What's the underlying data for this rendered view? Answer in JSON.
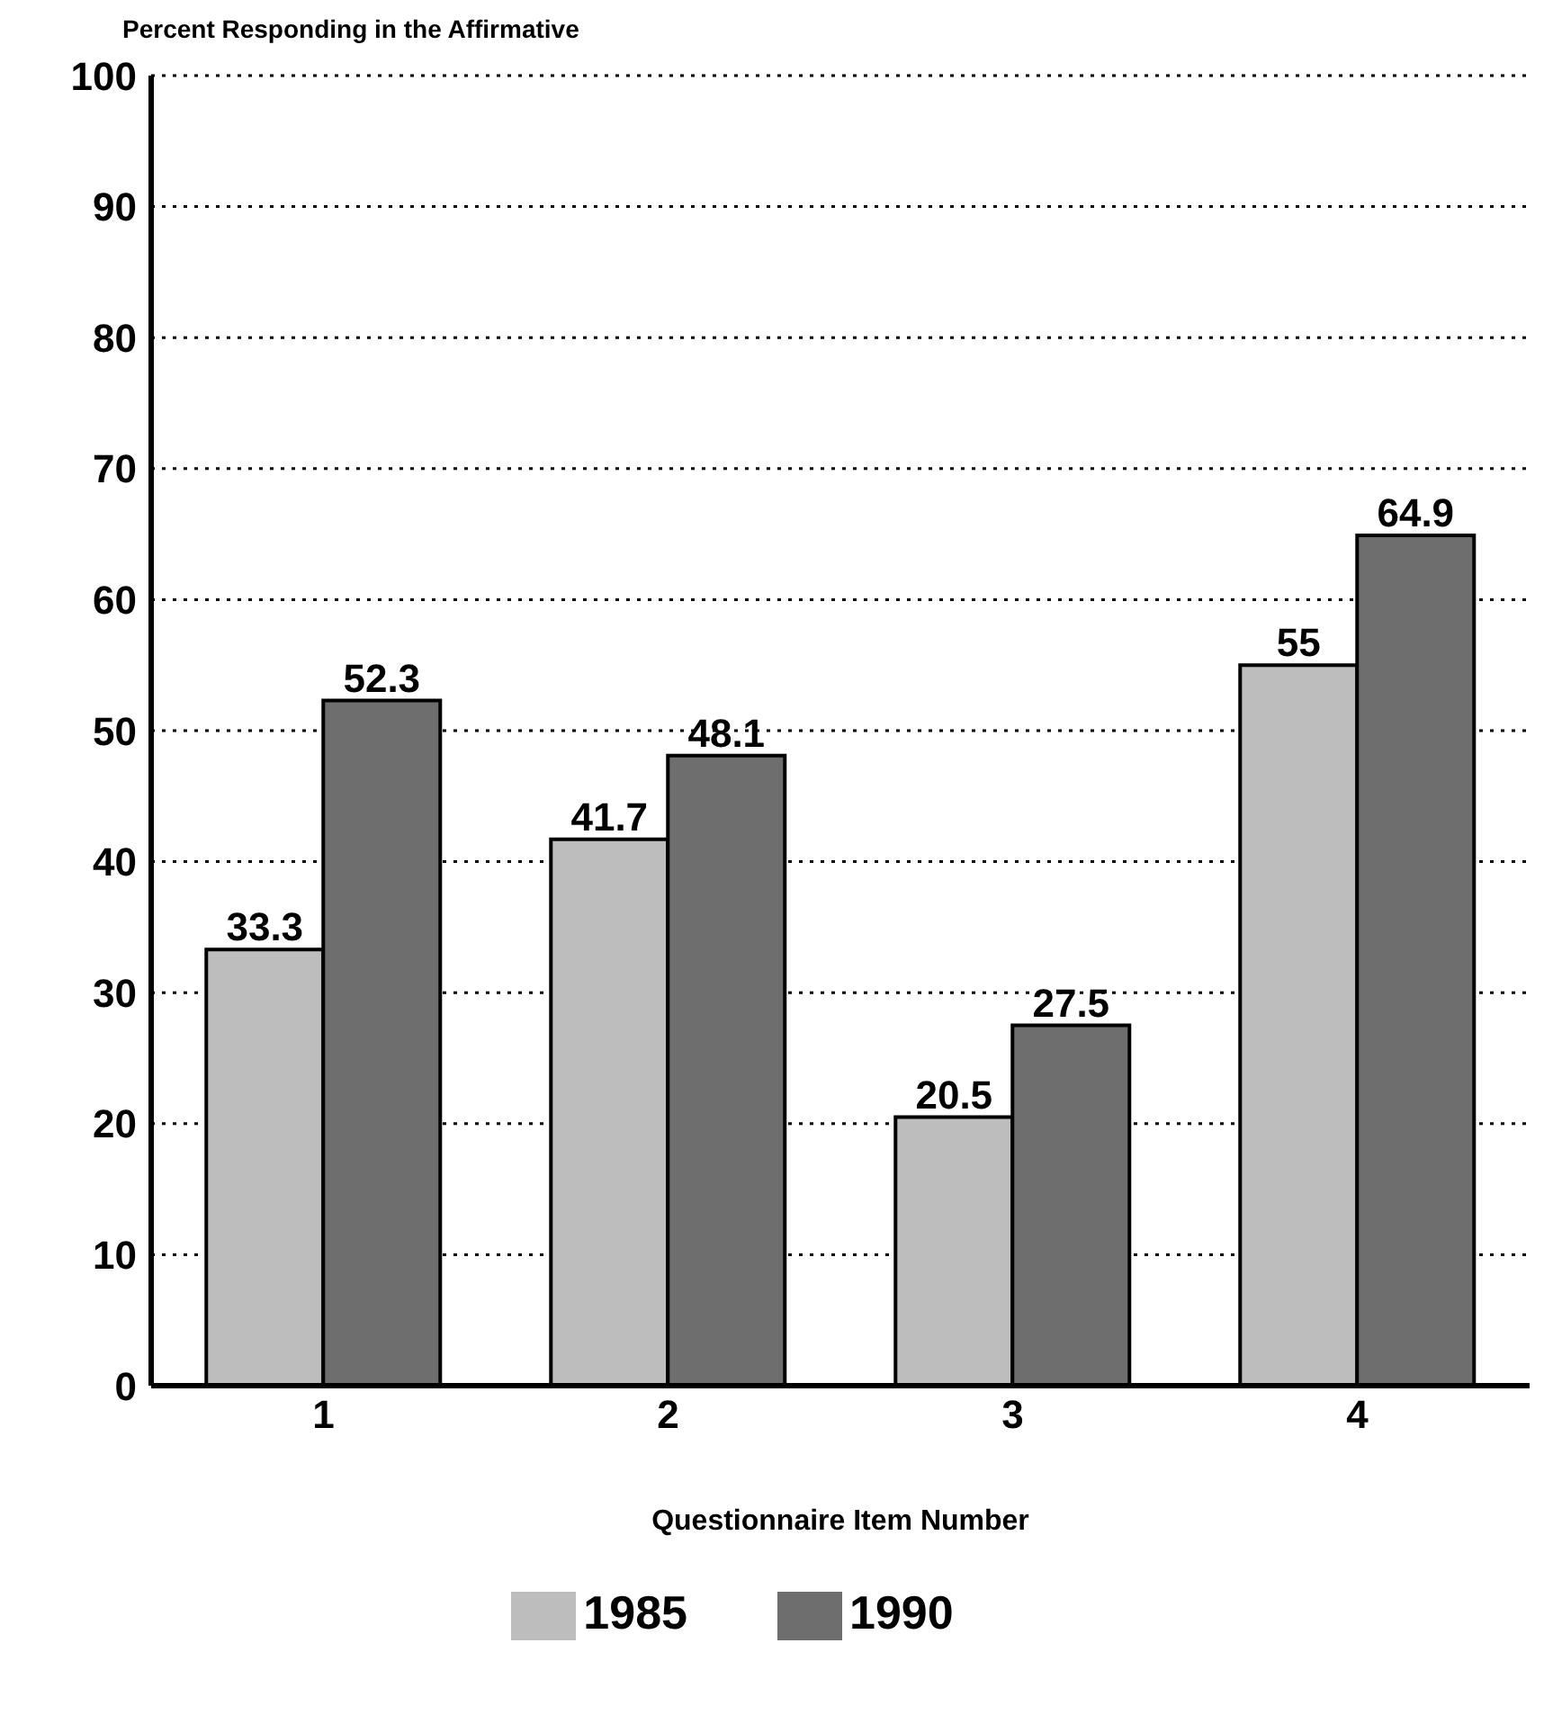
{
  "chart_data": {
    "type": "bar",
    "ylabel": "Percent Responding in the Affirmative",
    "xlabel": "Questionnaire Item Number",
    "categories": [
      "1",
      "2",
      "3",
      "4"
    ],
    "series": [
      {
        "name": "1985",
        "color": "#bdbdbd",
        "values": [
          33.3,
          41.7,
          20.5,
          55
        ]
      },
      {
        "name": "1990",
        "color": "#6e6e6e",
        "values": [
          52.3,
          48.1,
          27.5,
          64.9
        ]
      }
    ],
    "ylim": [
      0,
      100
    ],
    "yticks": [
      0,
      10,
      20,
      30,
      40,
      50,
      60,
      70,
      80,
      90,
      100
    ],
    "grid": "y",
    "legend": "bottom",
    "data_labels": true
  }
}
